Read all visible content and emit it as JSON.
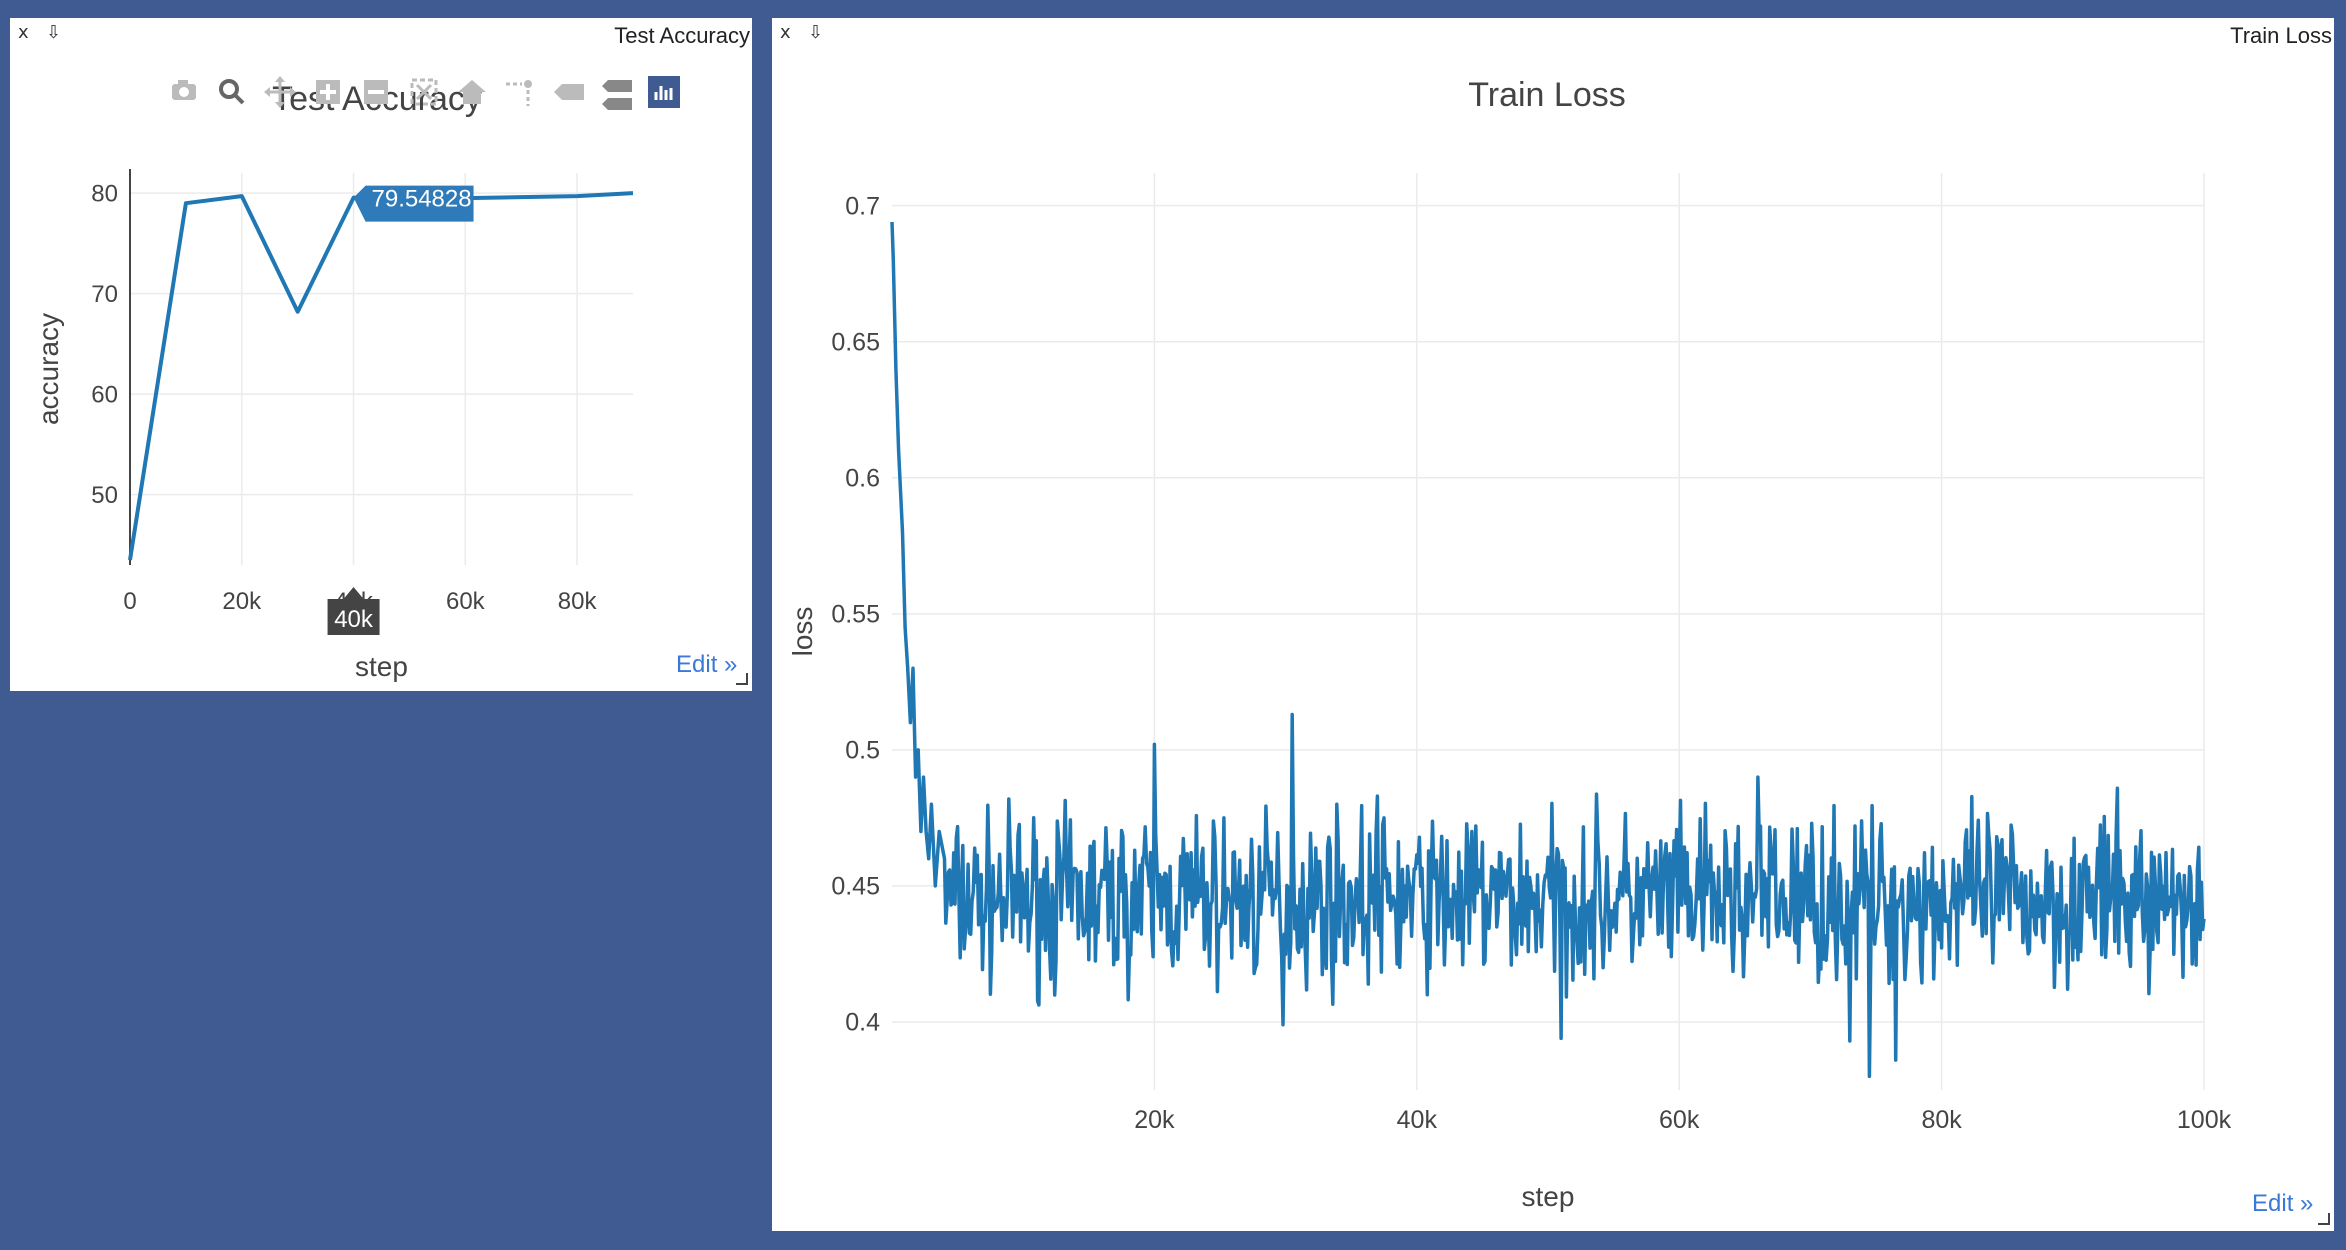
{
  "panes": {
    "acc": {
      "close_label": "x",
      "pop_label": "⇩",
      "header_title": "Test Accuracy",
      "edit_label": "Edit »"
    },
    "loss": {
      "close_label": "x",
      "pop_label": "⇩",
      "header_title": "Train Loss",
      "edit_label": "Edit »"
    }
  },
  "modebar": {
    "icons": [
      "camera-icon",
      "zoom-icon",
      "pan-icon",
      "zoom-in-icon",
      "zoom-out-icon",
      "autoscale-icon",
      "home-icon",
      "spike-lines-icon",
      "hover-closest-icon",
      "hover-compare-icon",
      "plotly-logo-icon"
    ]
  },
  "hover": {
    "value_label": "79.54828",
    "x_label": "40k"
  },
  "chart_data": [
    {
      "type": "line",
      "title": "Test Accuracy",
      "xlabel": "step",
      "ylabel": "accuracy",
      "xlim": [
        0,
        90000
      ],
      "ylim": [
        43,
        82
      ],
      "x_ticks": [
        0,
        20000,
        40000,
        60000,
        80000
      ],
      "x_tick_labels": [
        "0",
        "20k",
        "40k",
        "60k",
        "80k"
      ],
      "y_ticks": [
        50,
        60,
        70,
        80
      ],
      "y_tick_labels": [
        "50",
        "60",
        "70",
        "80"
      ],
      "grid": true,
      "color": "#1f77b4",
      "x": [
        0,
        10000,
        20000,
        30000,
        40000,
        50000,
        60000,
        70000,
        80000,
        90000
      ],
      "y": [
        43.5,
        79.0,
        79.7,
        68.2,
        79.55,
        79.4,
        79.5,
        79.6,
        79.7,
        80.0
      ]
    },
    {
      "type": "line",
      "title": "Train Loss",
      "xlabel": "step",
      "ylabel": "loss",
      "xlim": [
        0,
        100000
      ],
      "ylim": [
        0.375,
        0.712
      ],
      "x_ticks": [
        20000,
        40000,
        60000,
        80000,
        100000
      ],
      "x_tick_labels": [
        "20k",
        "40k",
        "60k",
        "80k",
        "100k"
      ],
      "y_ticks": [
        0.4,
        0.45,
        0.5,
        0.55,
        0.6,
        0.65,
        0.7
      ],
      "y_tick_labels": [
        "0.4",
        "0.45",
        "0.5",
        "0.55",
        "0.6",
        "0.65",
        "0.7"
      ],
      "grid": true,
      "color": "#1f77b4",
      "x": [
        0,
        100,
        200,
        300,
        500,
        800,
        1000,
        1200,
        1400,
        1600,
        1800,
        2000,
        2200,
        2400,
        2600,
        2800,
        3000,
        3300,
        3600,
        4000
      ],
      "y": [
        0.694,
        0.68,
        0.66,
        0.64,
        0.61,
        0.58,
        0.545,
        0.53,
        0.51,
        0.53,
        0.49,
        0.5,
        0.47,
        0.49,
        0.47,
        0.46,
        0.48,
        0.45,
        0.47,
        0.46
      ],
      "noise": {
        "start": 4000,
        "end": 100000,
        "step": 100,
        "mean": 0.445,
        "spread": 0.028,
        "seed": 7,
        "spikes": [
          [
            20000,
            0.502
          ],
          [
            30500,
            0.513
          ],
          [
            37000,
            0.483
          ],
          [
            66000,
            0.49
          ],
          [
            74500,
            0.38
          ],
          [
            76500,
            0.386
          ],
          [
            73000,
            0.393
          ],
          [
            51000,
            0.394
          ],
          [
            29800,
            0.399
          ]
        ]
      }
    }
  ]
}
